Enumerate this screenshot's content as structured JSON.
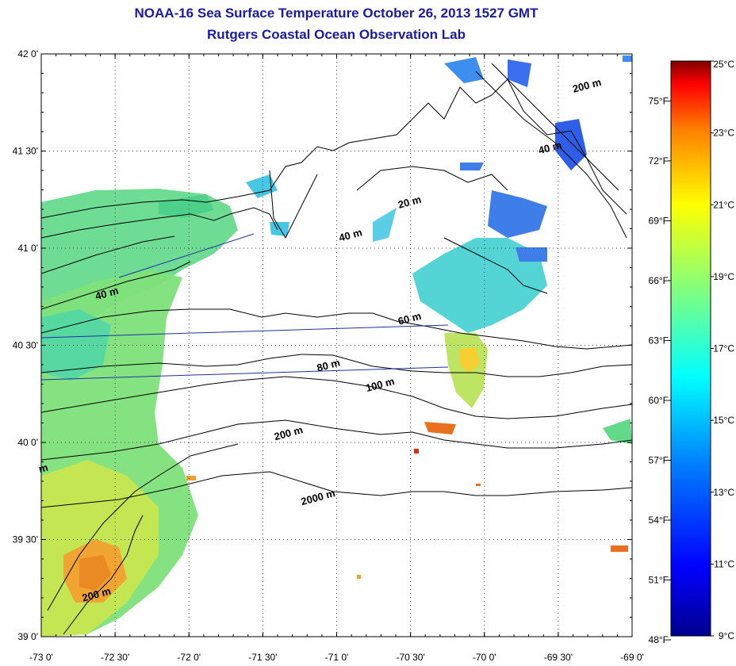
{
  "header": {
    "title": "NOAA-16 Sea Surface Temperature October 26, 2013 1527 GMT",
    "subtitle": "Rutgers Coastal Ocean Observation Lab"
  },
  "map": {
    "lon_ticks": [
      "-73 0'",
      "-72 30'",
      "-72 0'",
      "-71 30'",
      "-71 0'",
      "-70 30'",
      "-70 0'",
      "-69 30'",
      "-69 0'"
    ],
    "lat_ticks": [
      "42 0'",
      "41 30'",
      "41 0'",
      "40 30'",
      "40 0'",
      "39 30'",
      "39 0'"
    ],
    "lon_range": [
      -73,
      -69
    ],
    "lat_range": [
      39,
      42
    ],
    "grid": "dotted",
    "isobath_labels": [
      {
        "text": "200 m",
        "lon": -69.3,
        "lat": 41.82
      },
      {
        "text": "40 m",
        "lon": -69.55,
        "lat": 41.5
      },
      {
        "text": "20 m",
        "lon": -70.5,
        "lat": 41.22
      },
      {
        "text": "40 m",
        "lon": -70.9,
        "lat": 41.05
      },
      {
        "text": "40 m",
        "lon": -72.55,
        "lat": 40.75
      },
      {
        "text": "60 m",
        "lon": -70.5,
        "lat": 40.62
      },
      {
        "text": "80 m",
        "lon": -71.05,
        "lat": 40.38
      },
      {
        "text": "100 m",
        "lon": -70.7,
        "lat": 40.28
      },
      {
        "text": "200 m",
        "lon": -71.32,
        "lat": 40.03
      },
      {
        "text": "2000 m",
        "lon": -71.12,
        "lat": 39.7
      },
      {
        "text": "200 m",
        "lon": -72.62,
        "lat": 39.2
      },
      {
        "text": "m",
        "lon": -72.98,
        "lat": 39.85
      }
    ]
  },
  "colorbar": {
    "celsius_ticks": [
      "25°C",
      "23°C",
      "21°C",
      "19°C",
      "17°C",
      "15°C",
      "13°C",
      "11°C",
      "9°C"
    ],
    "fahrenheit_ticks": [
      "75°F",
      "72°F",
      "69°F",
      "66°F",
      "63°F",
      "60°F",
      "57°F",
      "54°F",
      "51°F",
      "48°F"
    ],
    "range_c": [
      9,
      25
    ],
    "range_f": [
      48.2,
      77
    ]
  }
}
